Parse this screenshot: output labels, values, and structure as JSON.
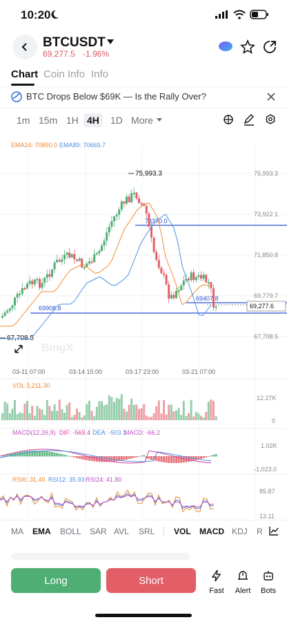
{
  "status": {
    "time": "10:20"
  },
  "header": {
    "symbol": "BTCUSDT",
    "price": "69,277.5",
    "change": "-1.96%"
  },
  "tabs": [
    {
      "label": "Chart"
    },
    {
      "label": "Coin Info"
    },
    {
      "label": "Info"
    }
  ],
  "news": {
    "text": "BTC Drops Below $69K — Is the Rally Over?"
  },
  "timeframes": [
    "1m",
    "15m",
    "1H",
    "4H",
    "1D",
    "More"
  ],
  "ema": {
    "ema34": "EMA34: 70890.0",
    "ema89": "EMA89: 70669.7"
  },
  "price_axis": [
    "75,993.3",
    "73,922.1",
    "71,850.8",
    "69,779.7",
    "67,708.5"
  ],
  "price_marks": {
    "high": "75,993.3",
    "low": "67,708.5",
    "line1": "73370.0",
    "line2": "69407.8",
    "line3": "69908.8",
    "current": "69,277.6"
  },
  "dates": [
    "03-11 07:00",
    "03-14 15:00",
    "03-17 23:00",
    "03-21 07:00"
  ],
  "vol": {
    "label": "VOL 3,211.30",
    "axis_top": "12.27K",
    "axis_bottom": "0"
  },
  "macd": {
    "label": "MACD(12,26,9)",
    "dif": "DIF: -569.4",
    "dea": "DEA: -503.1",
    "macd": "MACD: -66.2",
    "axis_top": "1.02K",
    "axis_bottom": "-1,023.0"
  },
  "rsi": {
    "rsi6": "RSI6: 31.40",
    "rsi12": "RSI12: 35.93",
    "rsi24": "RSI24: 41.80",
    "axis_top": "85.87",
    "axis_bottom": "13.11"
  },
  "indicators": [
    "MA",
    "EMA",
    "BOLL",
    "SAR",
    "AVL",
    "SRL",
    "VOL",
    "MACD",
    "KDJ",
    "R"
  ],
  "watermark": "BingX",
  "bottom": {
    "long": "Long",
    "short": "Short",
    "fast": "Fast",
    "alert": "Alert",
    "bots": "Bots"
  },
  "colors": {
    "up": "#4fae73",
    "down": "#e25f67",
    "ema34": "#f0892e",
    "ema89": "#4a8fe0",
    "hline": "#2d4fd6"
  }
}
